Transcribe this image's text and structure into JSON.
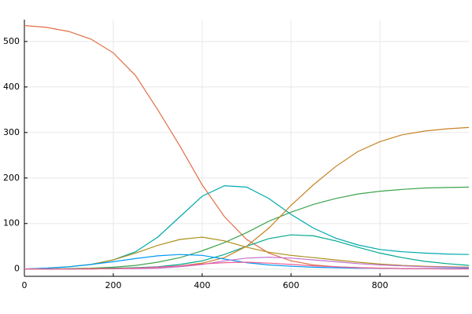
{
  "chart_data": {
    "type": "line",
    "x": [
      0,
      50,
      100,
      150,
      200,
      250,
      300,
      350,
      400,
      450,
      500,
      550,
      600,
      650,
      700,
      750,
      800,
      850,
      900,
      950,
      1000
    ],
    "series": [
      {
        "color": "#E26F46",
        "values": [
          535,
          531,
          522,
          505,
          475,
          425,
          350,
          270,
          185,
          115,
          65,
          35,
          18,
          9,
          5,
          3,
          2,
          1,
          1,
          1,
          1
        ]
      },
      {
        "color": "#00A9AD",
        "values": [
          0,
          2,
          5,
          10,
          20,
          38,
          70,
          115,
          160,
          183,
          180,
          155,
          120,
          90,
          68,
          53,
          43,
          38,
          35,
          33,
          32
        ]
      },
      {
        "color": "#00A98E",
        "values": [
          0,
          0,
          0,
          1,
          2,
          3,
          5,
          10,
          18,
          32,
          50,
          67,
          75,
          73,
          62,
          48,
          35,
          25,
          17,
          12,
          8
        ]
      },
      {
        "color": "#3DA44D",
        "values": [
          0,
          0,
          1,
          2,
          4,
          8,
          15,
          25,
          40,
          58,
          80,
          105,
          125,
          142,
          155,
          165,
          171,
          175,
          178,
          179,
          180
        ]
      },
      {
        "color": "#C68225",
        "values": [
          0,
          0,
          0,
          1,
          1,
          2,
          4,
          7,
          13,
          25,
          50,
          90,
          140,
          185,
          225,
          258,
          280,
          295,
          303,
          308,
          311
        ]
      },
      {
        "color": "#AC8E18",
        "values": [
          0,
          2,
          5,
          10,
          20,
          35,
          52,
          65,
          70,
          62,
          48,
          37,
          30,
          25,
          20,
          15,
          11,
          8,
          6,
          5,
          4
        ]
      },
      {
        "color": "#009AFA",
        "values": [
          0,
          2,
          5,
          10,
          16,
          23,
          29,
          32,
          30,
          22,
          14,
          9,
          6,
          4,
          3,
          2,
          2,
          1,
          1,
          1,
          1
        ]
      },
      {
        "color": "#C371D2",
        "values": [
          0,
          0,
          0,
          0,
          1,
          1,
          2,
          5,
          10,
          18,
          24,
          26,
          24,
          20,
          16,
          12,
          9,
          7,
          5,
          4,
          3
        ]
      },
      {
        "color": "#ED5E93",
        "values": [
          0,
          0,
          0,
          0,
          1,
          2,
          4,
          7,
          11,
          14,
          15,
          13,
          10,
          7,
          5,
          3,
          2,
          1,
          1,
          0,
          0
        ]
      }
    ],
    "xlim": [
      0,
      1000
    ],
    "xticks": [
      0,
      200,
      400,
      600,
      800
    ],
    "ylim": [
      -16,
      548
    ],
    "yticks": [
      0,
      100,
      200,
      300,
      400,
      500
    ],
    "grid": true
  }
}
